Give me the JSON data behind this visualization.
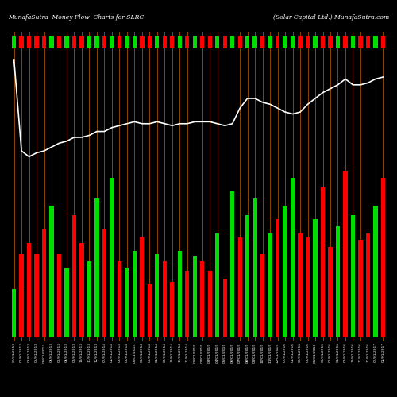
{
  "title_left": "MunafaSutra  Money Flow  Charts for SLRC",
  "title_right": "(Solar Capital Ltd.) MunafaSutra.com",
  "bg_color": "#000000",
  "bar_colors": [
    "#00dd00",
    "#ff0000",
    "#ff0000",
    "#ff0000",
    "#ff0000",
    "#00dd00",
    "#ff0000",
    "#00dd00",
    "#ff0000",
    "#ff0000",
    "#00dd00",
    "#00dd00",
    "#ff0000",
    "#00dd00",
    "#ff0000",
    "#00dd00",
    "#00dd00",
    "#ff0000",
    "#ff0000",
    "#00dd00",
    "#ff0000",
    "#ff0000",
    "#00dd00",
    "#ff0000",
    "#00dd00",
    "#ff0000",
    "#ff0000",
    "#00dd00",
    "#ff0000",
    "#00dd00",
    "#ff0000",
    "#00dd00",
    "#00dd00",
    "#ff0000",
    "#00dd00",
    "#ff0000",
    "#00dd00",
    "#00dd00",
    "#ff0000",
    "#ff0000",
    "#00dd00",
    "#ff0000",
    "#ff0000",
    "#00dd00",
    "#ff0000",
    "#00dd00",
    "#ff0000",
    "#ff0000",
    "#00dd00",
    "#ff0000"
  ],
  "bar_heights": [
    35,
    60,
    68,
    60,
    78,
    95,
    60,
    50,
    88,
    68,
    55,
    100,
    78,
    115,
    55,
    50,
    62,
    72,
    38,
    60,
    55,
    40,
    62,
    48,
    58,
    55,
    48,
    75,
    42,
    105,
    72,
    88,
    100,
    60,
    75,
    85,
    95,
    115,
    75,
    72,
    85,
    108,
    65,
    80,
    120,
    88,
    70,
    75,
    95,
    115
  ],
  "line_values": [
    195,
    148,
    145,
    147,
    148,
    150,
    152,
    153,
    155,
    155,
    156,
    158,
    158,
    160,
    161,
    162,
    163,
    162,
    162,
    163,
    162,
    161,
    162,
    162,
    163,
    163,
    163,
    162,
    161,
    162,
    170,
    175,
    175,
    173,
    172,
    170,
    168,
    167,
    168,
    172,
    175,
    178,
    180,
    182,
    185,
    182,
    182,
    183,
    185,
    186
  ],
  "orange_line_color": "#8B4500",
  "bar_width": 0.55,
  "xlabels": [
    "01/01/2013",
    "02/01/2013",
    "03/01/2013",
    "04/01/2013",
    "05/01/2013",
    "06/01/2013",
    "07/01/2013",
    "08/01/2013",
    "09/01/2013",
    "10/01/2013",
    "11/01/2013",
    "12/01/2013",
    "01/01/2014",
    "02/01/2014",
    "03/01/2014",
    "04/01/2014",
    "05/01/2014",
    "06/01/2014",
    "07/01/2014",
    "08/01/2014",
    "09/01/2014",
    "10/01/2014",
    "11/01/2014",
    "12/01/2014",
    "01/01/2015",
    "02/01/2015",
    "03/01/2015",
    "04/01/2015",
    "05/01/2015",
    "06/01/2015",
    "07/01/2015",
    "08/01/2015",
    "09/01/2015",
    "10/01/2015",
    "11/01/2015",
    "12/01/2015",
    "01/01/2016",
    "02/01/2016",
    "03/01/2016",
    "04/01/2016",
    "05/01/2016",
    "06/01/2016",
    "07/01/2016",
    "08/01/2016",
    "09/01/2016",
    "10/01/2016",
    "11/01/2016",
    "12/01/2016",
    "01/01/2017",
    "02/01/2017"
  ],
  "indicator_colors": [
    "#00dd00",
    "#ff0000",
    "#ff0000",
    "#ff0000",
    "#ff0000",
    "#00dd00",
    "#ff0000",
    "#00dd00",
    "#ff0000",
    "#ff0000",
    "#00dd00",
    "#00dd00",
    "#ff0000",
    "#00dd00",
    "#ff0000",
    "#00dd00",
    "#00dd00",
    "#ff0000",
    "#ff0000",
    "#00dd00",
    "#ff0000",
    "#ff0000",
    "#00dd00",
    "#ff0000",
    "#00dd00",
    "#ff0000",
    "#ff0000",
    "#00dd00",
    "#ff0000",
    "#00dd00",
    "#ff0000",
    "#00dd00",
    "#00dd00",
    "#ff0000",
    "#00dd00",
    "#ff0000",
    "#00dd00",
    "#00dd00",
    "#ff0000",
    "#ff0000",
    "#00dd00",
    "#ff0000",
    "#ff0000",
    "#00dd00",
    "#ff0000",
    "#00dd00",
    "#ff0000",
    "#ff0000",
    "#00dd00",
    "#ff0000"
  ]
}
